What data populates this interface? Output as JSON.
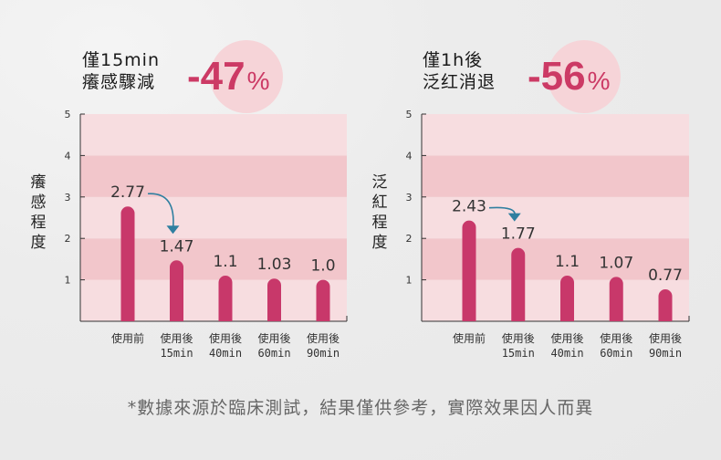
{
  "chart_data": [
    {
      "type": "bar",
      "headline": [
        "僅15min",
        "癢感驟減"
      ],
      "highlight": {
        "value": "-47",
        "unit": "%"
      },
      "ylabel": "癢感程度",
      "ylim": [
        0,
        5
      ],
      "yticks": [
        1,
        2,
        3,
        4,
        5
      ],
      "categories": [
        {
          "line1": "使用前",
          "line2": ""
        },
        {
          "line1": "使用後",
          "line2": "15min"
        },
        {
          "line1": "使用後",
          "line2": "40min"
        },
        {
          "line1": "使用後",
          "line2": "60min"
        },
        {
          "line1": "使用後",
          "line2": "90min"
        }
      ],
      "values": [
        2.77,
        1.47,
        1.1,
        1.03,
        1.0
      ],
      "value_labels": [
        "2.77",
        "1.47",
        "1.1",
        "1.03",
        "1.0"
      ]
    },
    {
      "type": "bar",
      "headline": [
        "僅1h後",
        "泛红消退"
      ],
      "highlight": {
        "value": "-56",
        "unit": "%"
      },
      "ylabel": "泛紅程度",
      "ylim": [
        0,
        5
      ],
      "yticks": [
        1,
        2,
        3,
        4,
        5
      ],
      "categories": [
        {
          "line1": "使用前",
          "line2": ""
        },
        {
          "line1": "使用後",
          "line2": "15min"
        },
        {
          "line1": "使用後",
          "line2": "40min"
        },
        {
          "line1": "使用後",
          "line2": "60min"
        },
        {
          "line1": "使用後",
          "line2": "90min"
        }
      ],
      "values": [
        2.43,
        1.77,
        1.1,
        1.07,
        0.77
      ],
      "value_labels": [
        "2.43",
        "1.77",
        "1.1",
        "1.07",
        "0.77"
      ]
    }
  ],
  "colors": {
    "bar": "#c8386a",
    "band_dark": "#f2c6cb",
    "band_light": "#f7dde0",
    "accent": "#cc3a65",
    "arrow": "#2f7fa0"
  },
  "footnote": "*數據來源於臨床測試，結果僅供參考，實際效果因人而異"
}
